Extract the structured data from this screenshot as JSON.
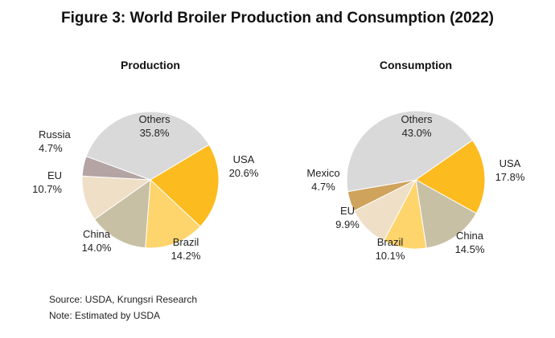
{
  "title": "Figure 3: World Broiler Production and Consumption (2022)",
  "footnotes": {
    "source": "Source: USDA, Krungsri Research",
    "note": "Note: Estimated by USDA"
  },
  "chart_data": [
    {
      "type": "pie",
      "title": "Production",
      "slices": [
        {
          "label": "USA",
          "value": 20.6,
          "value_text": "20.6%",
          "color": "#FCBB1F"
        },
        {
          "label": "Brazil",
          "value": 14.2,
          "value_text": "14.2%",
          "color": "#FED46C"
        },
        {
          "label": "China",
          "value": 14.0,
          "value_text": "14.0%",
          "color": "#C7C0A4"
        },
        {
          "label": "EU",
          "value": 10.7,
          "value_text": "10.7%",
          "color": "#EEDFC6"
        },
        {
          "label": "Russia",
          "value": 4.7,
          "value_text": "4.7%",
          "color": "#B4A4A4"
        },
        {
          "label": "Others",
          "value": 35.8,
          "value_text": "35.8%",
          "color": "#D9D9D9"
        }
      ]
    },
    {
      "type": "pie",
      "title": "Consumption",
      "slices": [
        {
          "label": "USA",
          "value": 17.8,
          "value_text": "17.8%",
          "color": "#FCBB1F"
        },
        {
          "label": "China",
          "value": 14.5,
          "value_text": "14.5%",
          "color": "#C7C0A4"
        },
        {
          "label": "Brazil",
          "value": 10.1,
          "value_text": "10.1%",
          "color": "#FED46C"
        },
        {
          "label": "EU",
          "value": 9.9,
          "value_text": "9.9%",
          "color": "#EEDFC6"
        },
        {
          "label": "Mexico",
          "value": 4.7,
          "value_text": "4.7%",
          "color": "#CFA35C"
        },
        {
          "label": "Others",
          "value": 43.0,
          "value_text": "43.0%",
          "color": "#D9D9D9"
        }
      ]
    }
  ]
}
